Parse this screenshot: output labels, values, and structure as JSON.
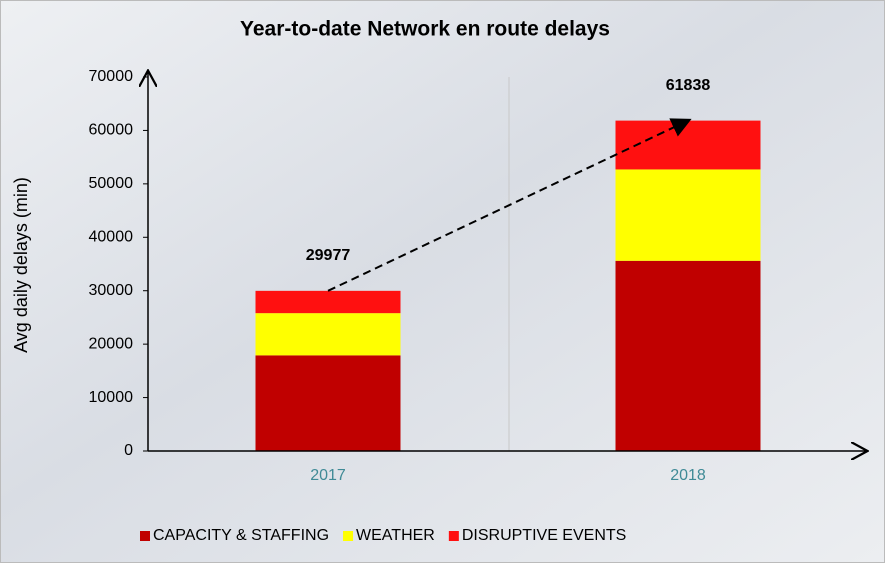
{
  "chart_data": {
    "type": "stacked_bar",
    "title": "Year-to-date Network en route delays",
    "y_label": "Avg daily delays (min)",
    "categories": [
      "2017",
      "2018"
    ],
    "series": [
      {
        "name": "CAPACITY & STAFFING",
        "color": "#c00000",
        "values": [
          17900,
          35600
        ]
      },
      {
        "name": "WEATHER",
        "color": "#ffff00",
        "values": [
          7900,
          17100
        ]
      },
      {
        "name": "DISRUPTIVE EVENTS",
        "color": "#ff1010",
        "values": [
          4177,
          9138
        ]
      }
    ],
    "totals": [
      29977,
      61838
    ],
    "ylim": [
      0,
      70000
    ],
    "yticks": [
      0,
      10000,
      20000,
      30000,
      40000,
      50000,
      60000,
      70000
    ],
    "grid": false,
    "legend": "bottom"
  }
}
